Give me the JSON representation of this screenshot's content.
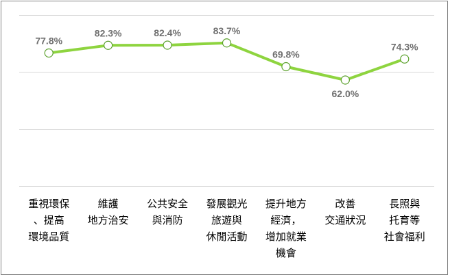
{
  "chart_data": {
    "type": "line",
    "title": "",
    "xlabel": "",
    "ylabel": "",
    "categories": [
      [
        "重視環保",
        "、提高",
        "環境品質"
      ],
      [
        "維護",
        "地方治安"
      ],
      [
        "公共安全",
        "與消防"
      ],
      [
        "發展觀光",
        "旅遊與",
        "休閒活動"
      ],
      [
        "提升地方",
        "經濟，",
        "增加就業",
        "機會"
      ],
      [
        "改善",
        "交通狀況"
      ],
      [
        "長照與",
        "托育等",
        "社會福利"
      ]
    ],
    "series": [
      {
        "values": [
          77.8,
          82.3,
          82.4,
          83.7,
          69.8,
          62.0,
          74.3
        ],
        "labels": [
          "77.8%",
          "82.3%",
          "82.4%",
          "83.7%",
          "69.8%",
          "62.0%",
          "74.3%"
        ]
      }
    ],
    "ylim": [
      0,
      100
    ],
    "grid": true,
    "legend": "none",
    "colors": {
      "line": "#8ed43f",
      "marker_fill": "#ffffff",
      "marker_stroke": "#5aa02c",
      "gridline": "#d9d9d9",
      "frame": "#7f7f7f"
    }
  }
}
